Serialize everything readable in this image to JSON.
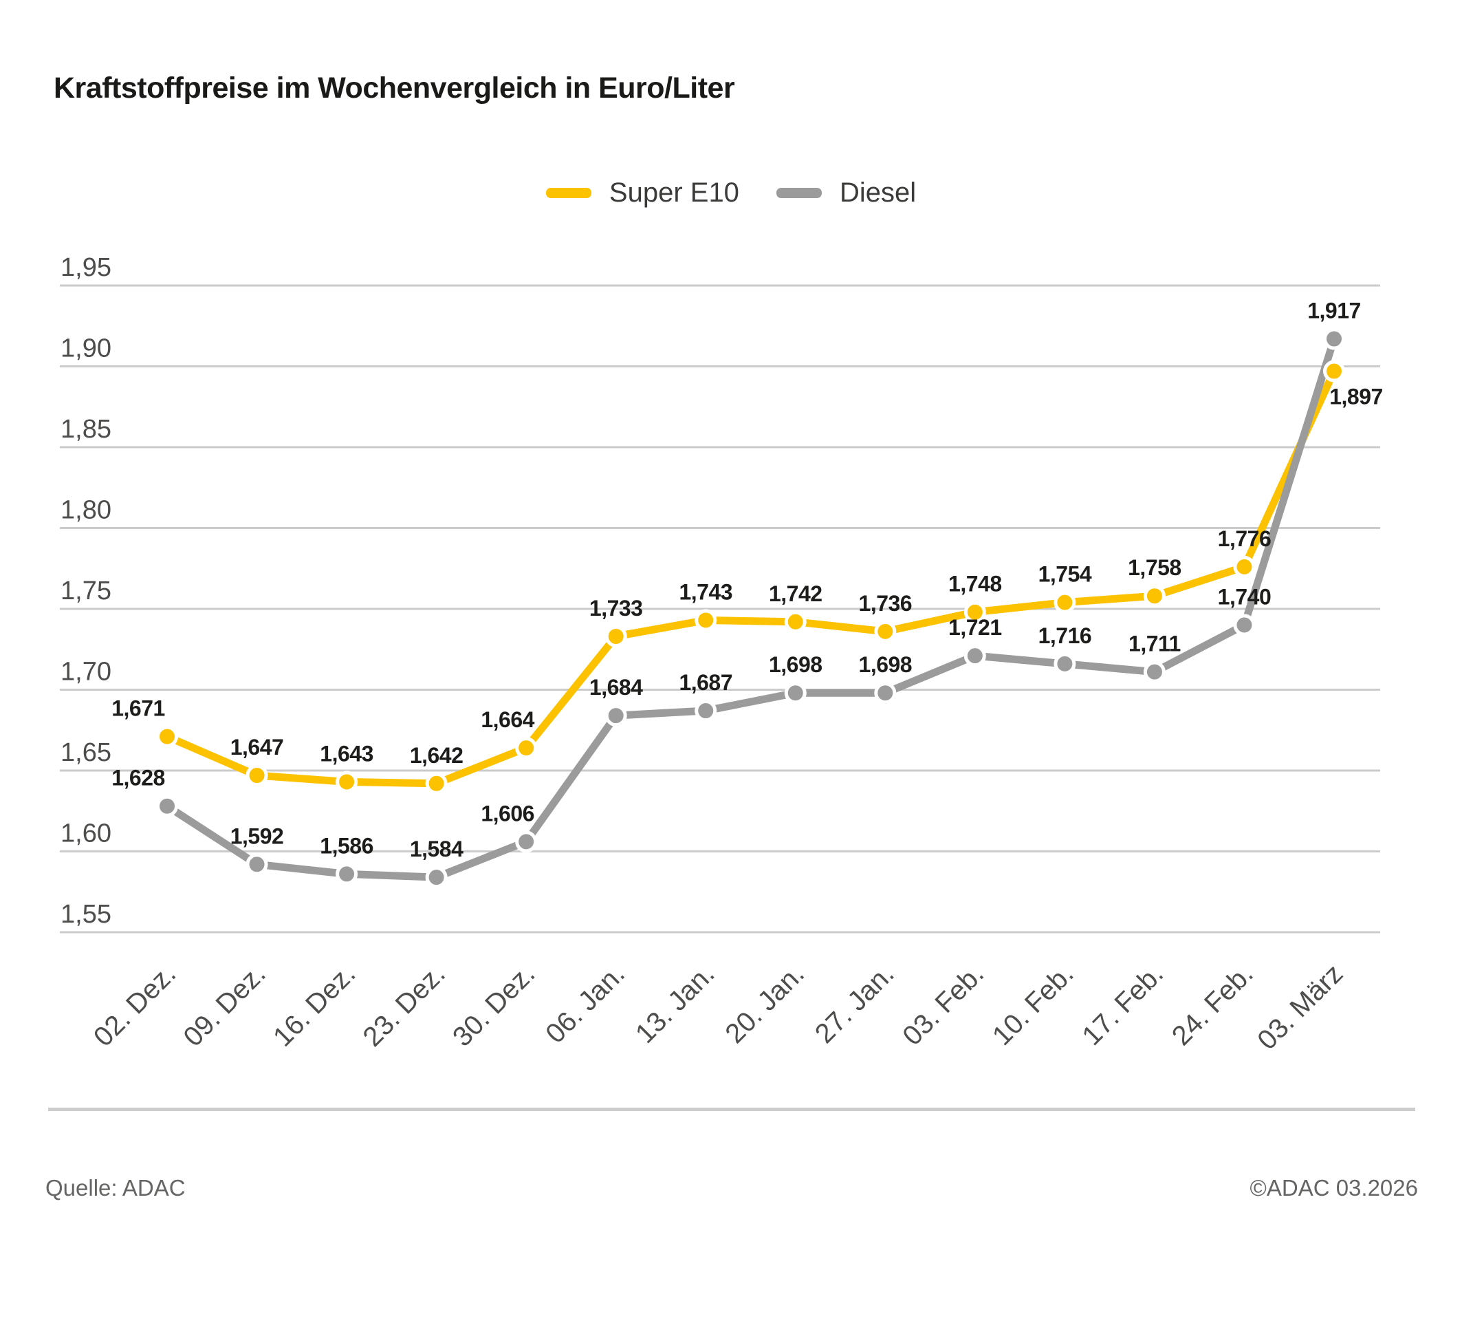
{
  "title": "Kraftstoffpreise im Wochenvergleich in Euro/Liter",
  "chart_data": {
    "type": "line",
    "title": "Kraftstoffpreise im Wochenvergleich in Euro/Liter",
    "categories": [
      "02. Dez.",
      "09. Dez.",
      "16. Dez.",
      "23. Dez.",
      "30. Dez.",
      "06. Jan.",
      "13. Jan.",
      "20. Jan.",
      "27. Jan.",
      "03. Feb.",
      "10. Feb.",
      "17. Feb.",
      "24. Feb.",
      "03. März"
    ],
    "series": [
      {
        "name": "Super E10",
        "color": "#FCC200",
        "values": [
          1.671,
          1.647,
          1.643,
          1.642,
          1.664,
          1.733,
          1.743,
          1.742,
          1.736,
          1.748,
          1.754,
          1.758,
          1.776,
          1.897
        ],
        "labels": [
          "1,671",
          "1,647",
          "1,643",
          "1,642",
          "1,664",
          "1,733",
          "1,743",
          "1,742",
          "1,736",
          "1,748",
          "1,754",
          "1,758",
          "1,776",
          "1,897"
        ]
      },
      {
        "name": "Diesel",
        "color": "#9B9B9B",
        "values": [
          1.628,
          1.592,
          1.586,
          1.584,
          1.606,
          1.684,
          1.687,
          1.698,
          1.698,
          1.721,
          1.716,
          1.711,
          1.74,
          1.917
        ],
        "labels": [
          "1,628",
          "1,592",
          "1,586",
          "1,584",
          "1,606",
          "1,684",
          "1,687",
          "1,698",
          "1,698",
          "1,721",
          "1,716",
          "1,711",
          "1,740",
          "1,917"
        ]
      }
    ],
    "yticks": [
      "1,95",
      "1,90",
      "1,85",
      "1,80",
      "1,75",
      "1,70",
      "1,65",
      "1,60",
      "1,55"
    ],
    "ylim": [
      1.55,
      1.95
    ],
    "xlabel": "",
    "ylabel": "",
    "grid": true,
    "legend_position": "top-center"
  },
  "footer": {
    "source": "Quelle: ADAC",
    "copyright": "©ADAC 03.2026"
  },
  "colors": {
    "super_e10": "#FCC200",
    "diesel": "#9B9B9B",
    "grid": "#CBCBCB",
    "axis_text": "#4D4D4C",
    "data_label": "#1D1D1B",
    "title_text": "#1A1A18",
    "divider": "#CDCDCD",
    "footer_text": "#666564",
    "background": "#FFFFFF"
  }
}
